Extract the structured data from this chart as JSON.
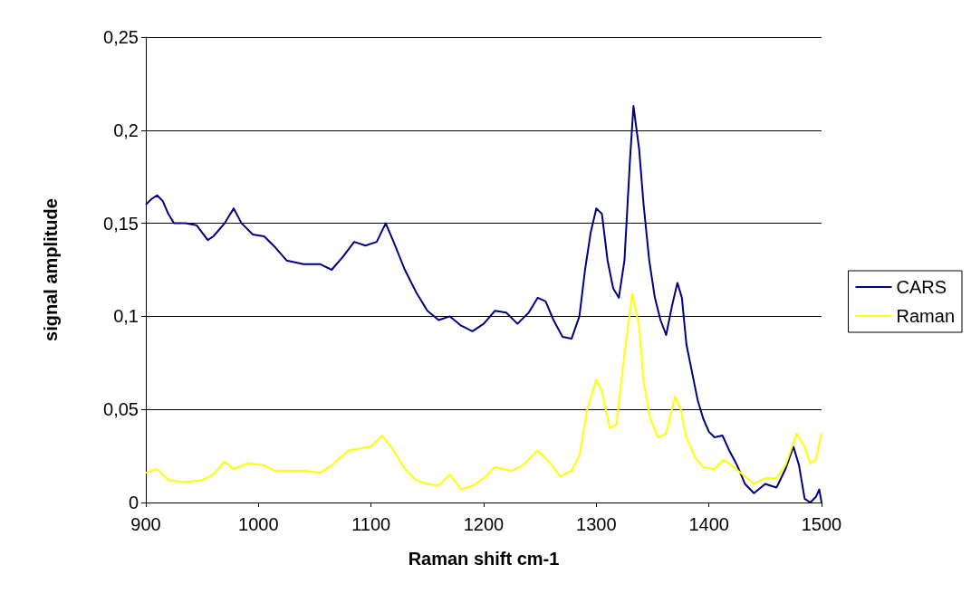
{
  "chart_data": {
    "type": "line",
    "xlabel": "Raman shift cm-1",
    "ylabel": "signal amplitude",
    "xlim": [
      900,
      1500
    ],
    "xticks": [
      900,
      1000,
      1100,
      1200,
      1300,
      1400,
      1500
    ],
    "ylim": [
      0,
      0.25
    ],
    "yticks": [
      0,
      {
        "value": 0.05,
        "label": "0,05"
      },
      {
        "value": 0.1,
        "label": "0,1"
      },
      {
        "value": 0.15,
        "label": "0,15"
      },
      {
        "value": 0.2,
        "label": "0,2"
      },
      {
        "value": 0.25,
        "label": "0,25"
      }
    ],
    "grid": "y",
    "legend": "right",
    "marker": "none",
    "line_style": "solid",
    "series": [
      {
        "name": "CARS",
        "color": "#000080",
        "x": [
          900,
          905,
          910,
          915,
          920,
          925,
          935,
          945,
          955,
          960,
          970,
          978,
          985,
          995,
          1005,
          1015,
          1025,
          1040,
          1055,
          1065,
          1075,
          1085,
          1095,
          1105,
          1113,
          1120,
          1130,
          1140,
          1150,
          1160,
          1170,
          1180,
          1190,
          1200,
          1210,
          1220,
          1230,
          1240,
          1248,
          1255,
          1262,
          1270,
          1278,
          1285,
          1290,
          1295,
          1300,
          1305,
          1310,
          1315,
          1320,
          1325,
          1330,
          1333,
          1338,
          1342,
          1347,
          1352,
          1357,
          1362,
          1367,
          1372,
          1376,
          1380,
          1385,
          1390,
          1395,
          1400,
          1405,
          1412,
          1418,
          1425,
          1432,
          1440,
          1450,
          1460,
          1468,
          1475,
          1480,
          1485,
          1490,
          1495,
          1498,
          1500
        ],
        "values": [
          0.16,
          0.163,
          0.165,
          0.162,
          0.155,
          0.15,
          0.15,
          0.149,
          0.141,
          0.143,
          0.15,
          0.158,
          0.15,
          0.144,
          0.143,
          0.137,
          0.13,
          0.128,
          0.128,
          0.125,
          0.132,
          0.14,
          0.138,
          0.14,
          0.15,
          0.14,
          0.125,
          0.113,
          0.103,
          0.098,
          0.1,
          0.095,
          0.092,
          0.096,
          0.103,
          0.102,
          0.096,
          0.102,
          0.11,
          0.108,
          0.098,
          0.089,
          0.088,
          0.1,
          0.125,
          0.145,
          0.158,
          0.155,
          0.13,
          0.115,
          0.11,
          0.13,
          0.185,
          0.213,
          0.19,
          0.16,
          0.13,
          0.11,
          0.098,
          0.09,
          0.105,
          0.118,
          0.11,
          0.085,
          0.07,
          0.055,
          0.045,
          0.038,
          0.035,
          0.036,
          0.028,
          0.02,
          0.01,
          0.005,
          0.01,
          0.008,
          0.018,
          0.03,
          0.02,
          0.002,
          0,
          0.003,
          0.007,
          0
        ]
      },
      {
        "name": "Raman",
        "color": "#ffff00",
        "x": [
          900,
          910,
          920,
          935,
          950,
          960,
          970,
          978,
          990,
          1005,
          1015,
          1040,
          1055,
          1065,
          1080,
          1090,
          1100,
          1110,
          1120,
          1130,
          1140,
          1150,
          1160,
          1170,
          1180,
          1190,
          1200,
          1210,
          1225,
          1235,
          1248,
          1258,
          1268,
          1278,
          1285,
          1292,
          1300,
          1305,
          1312,
          1318,
          1325,
          1332,
          1338,
          1342,
          1348,
          1355,
          1362,
          1370,
          1375,
          1380,
          1388,
          1395,
          1405,
          1413,
          1420,
          1430,
          1440,
          1450,
          1460,
          1468,
          1478,
          1485,
          1490,
          1495,
          1500
        ],
        "values": [
          0.016,
          0.018,
          0.012,
          0.011,
          0.012,
          0.015,
          0.022,
          0.018,
          0.021,
          0.02,
          0.017,
          0.017,
          0.016,
          0.02,
          0.028,
          0.029,
          0.03,
          0.036,
          0.028,
          0.018,
          0.012,
          0.01,
          0.009,
          0.015,
          0.007,
          0.009,
          0.013,
          0.019,
          0.017,
          0.02,
          0.028,
          0.022,
          0.014,
          0.017,
          0.025,
          0.05,
          0.066,
          0.06,
          0.04,
          0.042,
          0.08,
          0.112,
          0.095,
          0.065,
          0.045,
          0.035,
          0.037,
          0.057,
          0.05,
          0.035,
          0.024,
          0.019,
          0.018,
          0.023,
          0.02,
          0.015,
          0.01,
          0.013,
          0.013,
          0.02,
          0.037,
          0.03,
          0.021,
          0.023,
          0.037
        ]
      }
    ]
  }
}
